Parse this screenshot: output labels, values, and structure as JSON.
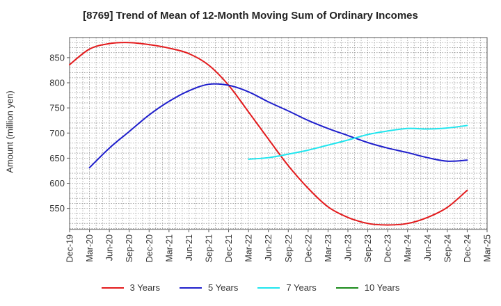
{
  "chart_data": {
    "type": "line",
    "title": "[8769]  Trend of Mean of 12-Month Moving Sum of Ordinary Incomes",
    "ylabel": "Amount (million yen)",
    "xlabel": "",
    "ylim": [
      508,
      890
    ],
    "y_ticks": [
      550,
      600,
      650,
      700,
      750,
      800,
      850
    ],
    "x_ticks": [
      "Dec-19",
      "Mar-20",
      "Jun-20",
      "Sep-20",
      "Dec-20",
      "Mar-21",
      "Jun-21",
      "Sep-21",
      "Dec-21",
      "Mar-22",
      "Jun-22",
      "Sep-22",
      "Dec-22",
      "Mar-23",
      "Jun-23",
      "Sep-23",
      "Dec-23",
      "Mar-24",
      "Jun-24",
      "Sep-24",
      "Dec-24",
      "Mar-25"
    ],
    "grid": true,
    "series": [
      {
        "name": "3 Years",
        "color": "#e31a1c",
        "x": [
          0,
          1,
          2,
          3,
          4,
          5,
          6,
          7,
          8,
          9,
          10,
          11,
          12,
          13,
          14,
          15,
          16,
          17,
          18,
          19,
          20
        ],
        "y": [
          836,
          867,
          878,
          880,
          876,
          869,
          858,
          835,
          795,
          742,
          688,
          635,
          590,
          553,
          532,
          520,
          517,
          520,
          532,
          552,
          586
        ]
      },
      {
        "name": "5 Years",
        "color": "#1f1fcc",
        "x": [
          1,
          2,
          3,
          4,
          5,
          6,
          7,
          8,
          9,
          10,
          11,
          12,
          13,
          14,
          15,
          16,
          17,
          18,
          19,
          20
        ],
        "y": [
          631,
          670,
          703,
          736,
          763,
          784,
          797,
          795,
          782,
          762,
          744,
          725,
          709,
          695,
          681,
          670,
          661,
          651,
          644,
          646
        ]
      },
      {
        "name": "7 Years",
        "color": "#1fe5ee",
        "x": [
          9,
          10,
          11,
          12,
          13,
          14,
          15,
          16,
          17,
          18,
          19,
          20
        ],
        "y": [
          648,
          651,
          658,
          666,
          676,
          686,
          697,
          704,
          709,
          708,
          710,
          715
        ]
      },
      {
        "name": "10 Years",
        "color": "#1a8a1a",
        "x": [],
        "y": []
      }
    ]
  }
}
